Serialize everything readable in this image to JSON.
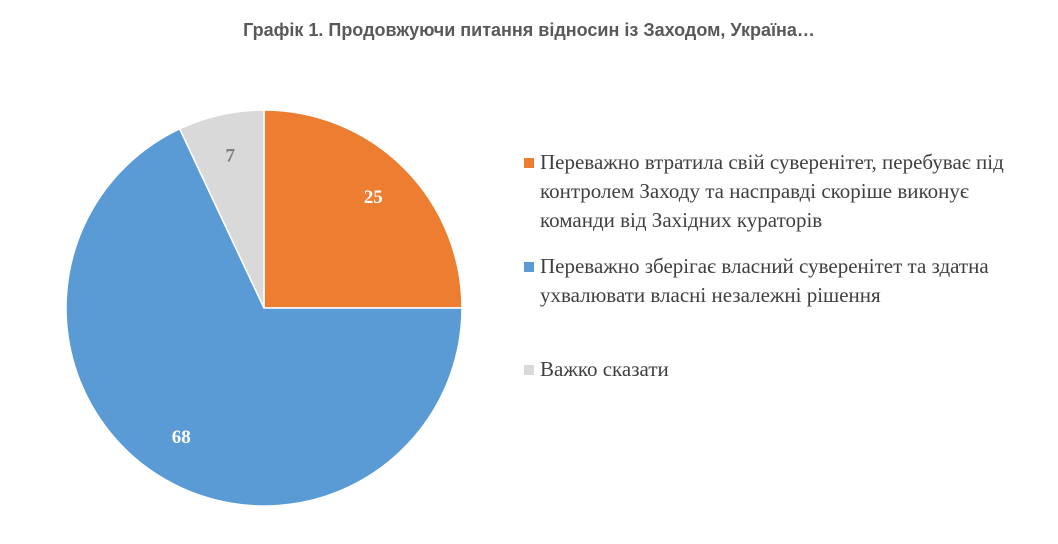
{
  "chart_data": {
    "type": "pie",
    "title": "Графік 1. Продовжуючи питання відносин із Заходом, Україна…",
    "slices": [
      {
        "label": "Переважно втратила свій суверенітет, перебуває під контролем Заходу та насправді скоріше виконує команди від Західних кураторів",
        "value": 25,
        "color": "#ED7D31",
        "label_color": "#ffffff"
      },
      {
        "label": "Переважно зберігає власний суверенітет та здатна ухвалювати власні незалежні рішення",
        "value": 68,
        "color": "#5B9BD5",
        "label_color": "#ffffff"
      },
      {
        "label": "Важко сказати",
        "value": 7,
        "color": "#D9D9D9",
        "label_color": "#7f7f7f"
      }
    ],
    "legend_position": "right"
  }
}
